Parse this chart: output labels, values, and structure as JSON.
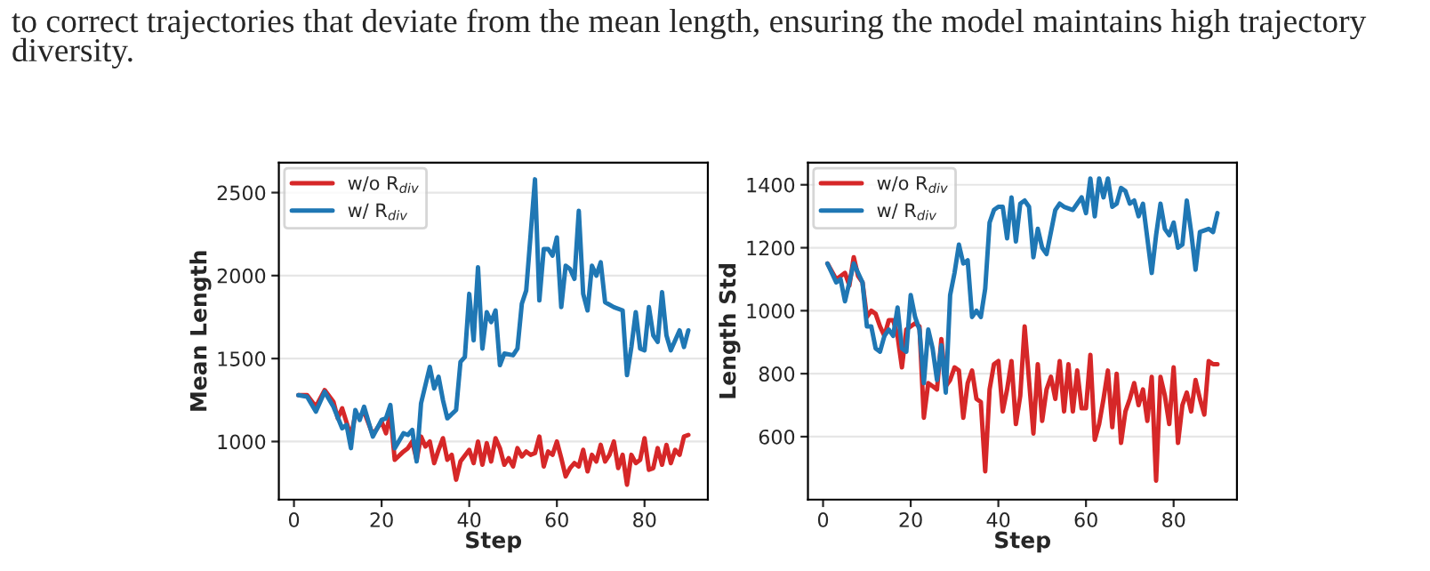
{
  "chart_data": [
    {
      "type": "line",
      "xlabel": "Step",
      "ylabel": "Mean Length",
      "xlim": [
        -3.45,
        94.45
      ],
      "ylim": [
        650,
        2680
      ],
      "xticks": [
        0,
        20,
        40,
        60,
        80
      ],
      "yticks": [
        1000,
        1500,
        2000,
        2500
      ],
      "grid": "y",
      "legend": "top left",
      "annotations": [
        "to correct trajectories that deviate from the mean length, ensuring the model maintains high trajectory diversity."
      ],
      "series": [
        {
          "name": "w/o R$_{div}$",
          "color": "#d62728",
          "x": [
            1,
            3,
            5,
            7,
            9,
            10,
            11,
            13,
            14,
            15,
            16,
            18,
            20,
            21,
            22,
            23,
            25,
            26,
            27,
            28,
            29,
            30,
            31,
            32,
            33,
            34,
            35,
            36,
            37,
            38,
            40,
            41,
            42,
            43,
            44,
            45,
            46,
            47,
            48,
            49,
            50,
            51,
            52,
            53,
            54,
            55,
            56,
            57,
            58,
            59,
            60,
            61,
            62,
            63,
            64,
            65,
            66,
            67,
            68,
            69,
            70,
            71,
            72,
            73,
            74,
            75,
            76,
            77,
            78,
            79,
            80,
            81,
            82,
            83,
            84,
            85,
            86,
            87,
            88,
            89,
            90
          ],
          "values": [
            1280,
            1280,
            1210,
            1310,
            1240,
            1140,
            1200,
            1030,
            1160,
            1150,
            1180,
            1040,
            1120,
            1050,
            1170,
            890,
            940,
            960,
            1000,
            890,
            1030,
            970,
            1000,
            870,
            950,
            1020,
            890,
            920,
            770,
            880,
            950,
            870,
            1000,
            860,
            990,
            880,
            1020,
            960,
            860,
            900,
            850,
            960,
            910,
            940,
            920,
            930,
            1030,
            850,
            940,
            920,
            1000,
            900,
            790,
            840,
            870,
            850,
            950,
            820,
            920,
            880,
            980,
            880,
            920,
            1000,
            840,
            920,
            740,
            920,
            870,
            890,
            1020,
            830,
            840,
            960,
            860,
            980,
            870,
            950,
            920,
            1030,
            1040
          ]
        },
        {
          "name": "w/ R$_{div}$",
          "color": "#1f77b4",
          "x": [
            1,
            3,
            5,
            7,
            9,
            11,
            12,
            13,
            14,
            15,
            16,
            18,
            20,
            21,
            22,
            23,
            25,
            26,
            27,
            28,
            29,
            31,
            32,
            33,
            34,
            35,
            37,
            38,
            39,
            40,
            41,
            42,
            43,
            44,
            45,
            46,
            47,
            48,
            50,
            51,
            52,
            53,
            55,
            56,
            57,
            58,
            59,
            60,
            61,
            62,
            63,
            64,
            65,
            66,
            67,
            68,
            69,
            70,
            71,
            73,
            75,
            76,
            77,
            78,
            79,
            80,
            81,
            82,
            83,
            84,
            85,
            86,
            88,
            89,
            90
          ],
          "values": [
            1280,
            1270,
            1180,
            1300,
            1210,
            1080,
            1100,
            960,
            1190,
            1130,
            1210,
            1030,
            1130,
            1140,
            1220,
            960,
            1050,
            1040,
            1070,
            880,
            1230,
            1450,
            1320,
            1390,
            1250,
            1140,
            1190,
            1480,
            1510,
            1890,
            1610,
            2050,
            1560,
            1780,
            1720,
            1790,
            1460,
            1530,
            1520,
            1560,
            1830,
            1910,
            2580,
            1850,
            2160,
            2160,
            2120,
            2230,
            1810,
            2060,
            2040,
            1980,
            2390,
            1890,
            1790,
            2060,
            2000,
            2080,
            1840,
            1810,
            1790,
            1400,
            1570,
            1780,
            1560,
            1550,
            1810,
            1640,
            1600,
            1900,
            1640,
            1550,
            1670,
            1570,
            1670
          ]
        }
      ]
    },
    {
      "type": "line",
      "xlabel": "Step",
      "ylabel": "Length Std",
      "xlim": [
        -3.45,
        94.45
      ],
      "ylim": [
        400,
        1470
      ],
      "xticks": [
        0,
        20,
        40,
        60,
        80
      ],
      "yticks": [
        600,
        800,
        1000,
        1200,
        1400
      ],
      "grid": "y",
      "legend": "top left",
      "series": [
        {
          "name": "w/o R$_{div}$",
          "color": "#d62728",
          "x": [
            1,
            3,
            4,
            5,
            6,
            7,
            8,
            9,
            10,
            11,
            12,
            13,
            14,
            15,
            16,
            17,
            18,
            19,
            20,
            21,
            22,
            23,
            24,
            25,
            26,
            27,
            28,
            29,
            30,
            31,
            32,
            33,
            34,
            35,
            36,
            37,
            38,
            39,
            40,
            41,
            42,
            43,
            44,
            45,
            46,
            47,
            48,
            49,
            50,
            51,
            52,
            53,
            54,
            55,
            56,
            57,
            58,
            59,
            60,
            61,
            62,
            63,
            64,
            65,
            66,
            67,
            68,
            69,
            70,
            71,
            72,
            73,
            74,
            75,
            76,
            77,
            78,
            79,
            80,
            81,
            82,
            83,
            84,
            85,
            86,
            87,
            88,
            89,
            90
          ],
          "values": [
            1150,
            1100,
            1110,
            1120,
            1080,
            1170,
            1110,
            1090,
            980,
            1000,
            990,
            950,
            920,
            970,
            970,
            920,
            820,
            940,
            950,
            960,
            950,
            660,
            770,
            760,
            750,
            910,
            760,
            780,
            820,
            810,
            660,
            770,
            810,
            720,
            710,
            490,
            750,
            830,
            840,
            680,
            750,
            840,
            640,
            730,
            950,
            780,
            610,
            830,
            650,
            750,
            790,
            720,
            840,
            680,
            830,
            680,
            810,
            690,
            690,
            860,
            590,
            640,
            720,
            810,
            630,
            800,
            580,
            680,
            720,
            770,
            700,
            750,
            650,
            790,
            460,
            790,
            730,
            640,
            820,
            580,
            700,
            740,
            680,
            780,
            720,
            670,
            840,
            830,
            830
          ]
        },
        {
          "name": "w/ R$_{div}$",
          "color": "#1f77b4",
          "x": [
            1,
            3,
            4,
            5,
            7,
            9,
            10,
            11,
            12,
            13,
            14,
            15,
            16,
            17,
            18,
            19,
            20,
            21,
            22,
            23,
            24,
            25,
            26,
            27,
            28,
            29,
            30,
            31,
            32,
            33,
            34,
            35,
            36,
            37,
            38,
            39,
            40,
            41,
            42,
            43,
            44,
            45,
            46,
            47,
            48,
            49,
            50,
            51,
            53,
            54,
            55,
            57,
            58,
            59,
            60,
            61,
            62,
            63,
            64,
            65,
            66,
            67,
            68,
            69,
            70,
            71,
            72,
            73,
            75,
            76,
            77,
            78,
            79,
            80,
            81,
            82,
            83,
            84,
            85,
            86,
            88,
            89,
            90
          ],
          "values": [
            1150,
            1090,
            1100,
            1030,
            1150,
            1090,
            950,
            950,
            880,
            870,
            920,
            940,
            920,
            1010,
            880,
            870,
            1050,
            980,
            940,
            770,
            940,
            880,
            780,
            890,
            740,
            1050,
            1120,
            1210,
            1150,
            1160,
            980,
            1000,
            980,
            1070,
            1280,
            1320,
            1330,
            1330,
            1230,
            1360,
            1220,
            1340,
            1350,
            1330,
            1170,
            1260,
            1200,
            1180,
            1320,
            1340,
            1330,
            1320,
            1340,
            1360,
            1310,
            1420,
            1300,
            1420,
            1360,
            1420,
            1330,
            1340,
            1390,
            1380,
            1340,
            1350,
            1300,
            1340,
            1120,
            1240,
            1340,
            1260,
            1240,
            1280,
            1200,
            1210,
            1350,
            1250,
            1130,
            1250,
            1260,
            1250,
            1310
          ]
        }
      ]
    }
  ]
}
